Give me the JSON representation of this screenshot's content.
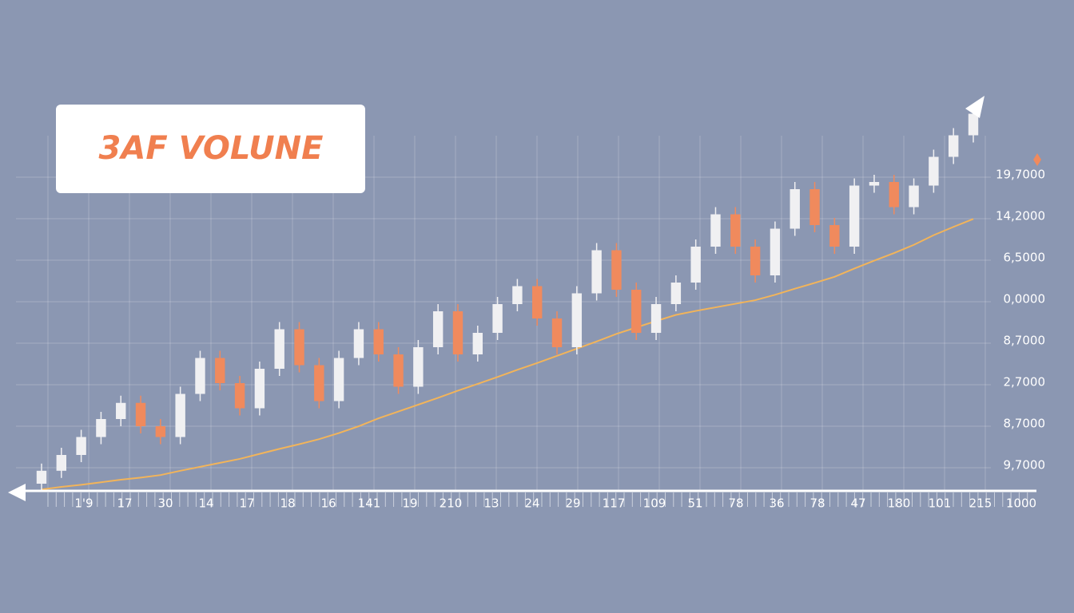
{
  "chart_data": {
    "type": "candlestick",
    "title": "3AF VOLUNE",
    "ylim": [
      0,
      110
    ],
    "up_color": "#f0f0f2",
    "down_color": "#f08a5d",
    "y_axis_labels": [
      "19,7000",
      "14,2000",
      "6,5000",
      "0,0000",
      "8,7000",
      "2,7000",
      "8,7000",
      "9,7000"
    ],
    "x_axis_labels": [
      "1'9",
      "17",
      "30",
      "14",
      "17",
      "18",
      "16",
      "141",
      "19",
      "210",
      "13",
      "24",
      "29",
      "117",
      "109",
      "51",
      "78",
      "36",
      "78",
      "47",
      "180",
      "101",
      "215",
      "1000"
    ],
    "candles": {
      "open": [
        2,
        5.6,
        10,
        15,
        20,
        24.5,
        18,
        15,
        27,
        37,
        30,
        23,
        34,
        45,
        35,
        25,
        37,
        45,
        38,
        29,
        40,
        50,
        38,
        44,
        52,
        57,
        48,
        40,
        55,
        67,
        56,
        44,
        52,
        58,
        68,
        77,
        68,
        60,
        73,
        84,
        74,
        68,
        85,
        86,
        79,
        85,
        93,
        99
      ],
      "high": [
        7.6,
        12,
        17,
        22,
        26.5,
        26.5,
        20,
        29,
        39,
        39,
        32,
        36,
        47,
        47,
        37,
        39,
        47,
        47,
        40,
        42,
        52,
        52,
        46,
        54,
        59,
        59,
        50,
        57,
        69,
        69,
        58,
        54,
        60,
        70,
        79,
        79,
        70,
        75,
        86,
        86,
        76,
        87,
        88,
        88,
        87,
        95,
        101,
        107
      ],
      "low": [
        0,
        3.6,
        8,
        13,
        18,
        16,
        13,
        13,
        25,
        28,
        21,
        21,
        32,
        33,
        23,
        23,
        35,
        36,
        27,
        27,
        38,
        36,
        36,
        42,
        50,
        46,
        38,
        38,
        53,
        54,
        42,
        42,
        50,
        56,
        66,
        66,
        58,
        58,
        71,
        72,
        66,
        66,
        83,
        77,
        77,
        83,
        91,
        97
      ],
      "close": [
        5.6,
        10,
        15,
        20,
        24.5,
        18,
        15,
        27,
        37,
        30,
        23,
        34,
        45,
        35,
        25,
        37,
        45,
        38,
        29,
        40,
        50,
        38,
        44,
        52,
        57,
        48,
        40,
        55,
        67,
        56,
        44,
        52,
        58,
        68,
        77,
        68,
        60,
        73,
        84,
        74,
        68,
        85,
        86,
        79,
        85,
        93,
        99,
        105
      ]
    },
    "ma": {
      "color": "#f2b45a",
      "values": [
        0.4,
        1.1,
        1.7,
        2.4,
        3.1,
        3.7,
        4.4,
        5.6,
        6.7,
        7.8,
        8.9,
        10.3,
        11.7,
        13,
        14.4,
        16.1,
        18,
        20.2,
        22.1,
        24,
        25.9,
        27.9,
        29.8,
        31.7,
        33.7,
        35.6,
        37.6,
        39.6,
        41.6,
        43.7,
        45.5,
        47.3,
        49,
        50.1,
        51.1,
        52.1,
        53.1,
        54.6,
        56.3,
        57.9,
        59.6,
        61.9,
        64.1,
        66.2,
        68.5,
        71.2,
        73.5,
        75.7
      ]
    }
  }
}
